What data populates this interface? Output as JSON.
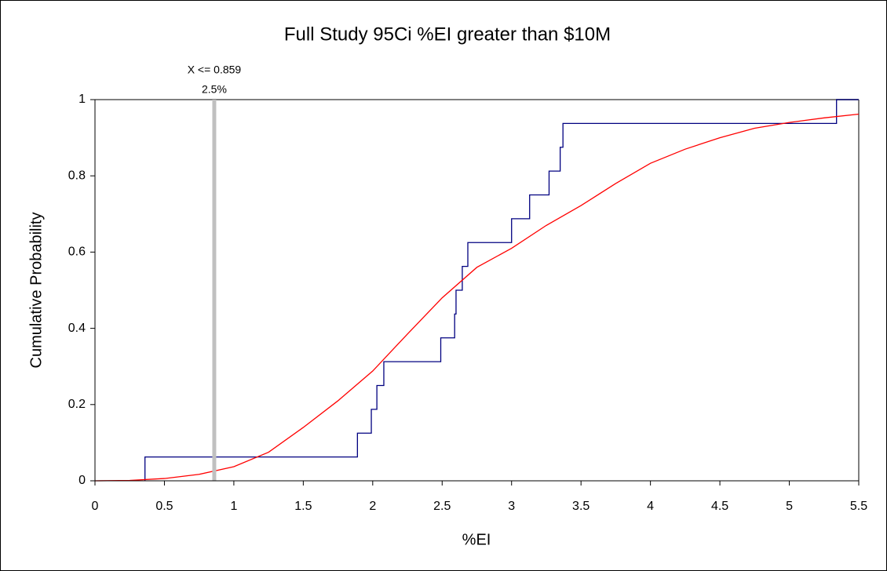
{
  "chart_data": {
    "type": "line",
    "title": "Full Study 95Ci %EI greater than $10M",
    "x_label": "%EI",
    "y_label": "Cumulative Probability",
    "xlim": [
      0,
      5.5
    ],
    "ylim": [
      0,
      1
    ],
    "xticks": [
      0,
      0.5,
      1,
      1.5,
      2,
      2.5,
      3,
      3.5,
      4,
      4.5,
      5,
      5.5
    ],
    "yticks": [
      0,
      0.2,
      0.4,
      0.6,
      0.8,
      1
    ],
    "marker": {
      "x": 0.859,
      "color": "#c0c0c0",
      "texts": [
        "X <= 0.859",
        "2.5%"
      ]
    },
    "series": [
      {
        "color": "#000080",
        "x": [
          0.36,
          0.36,
          1.89,
          1.89,
          1.99,
          1.99,
          2.03,
          2.03,
          2.08,
          2.08,
          2.49,
          2.49,
          2.59,
          2.59,
          2.6,
          2.6,
          2.645,
          2.645,
          2.685,
          2.685,
          3.0,
          3.0,
          3.13,
          3.13,
          3.27,
          3.27,
          3.35,
          3.35,
          3.37,
          3.37,
          5.34,
          5.34,
          5.5
        ],
        "values": [
          0,
          0.0625,
          0.0625,
          0.125,
          0.125,
          0.1875,
          0.1875,
          0.25,
          0.25,
          0.3125,
          0.3125,
          0.375,
          0.375,
          0.4375,
          0.4375,
          0.5,
          0.5,
          0.5625,
          0.5625,
          0.625,
          0.625,
          0.6875,
          0.6875,
          0.75,
          0.75,
          0.8125,
          0.8125,
          0.875,
          0.875,
          0.9375,
          0.9375,
          1,
          1
        ]
      },
      {
        "color": "#ff0000",
        "x": [
          0,
          0.25,
          0.5,
          0.75,
          1,
          1.25,
          1.5,
          1.75,
          2,
          2.25,
          2.5,
          2.75,
          3,
          3.25,
          3.5,
          3.75,
          4,
          4.25,
          4.5,
          4.75,
          5,
          5.25,
          5.5
        ],
        "values": [
          0,
          0.001,
          0.006,
          0.017,
          0.037,
          0.075,
          0.14,
          0.21,
          0.288,
          0.385,
          0.48,
          0.56,
          0.61,
          0.67,
          0.722,
          0.78,
          0.833,
          0.87,
          0.9,
          0.925,
          0.94,
          0.952,
          0.962
        ]
      }
    ]
  }
}
